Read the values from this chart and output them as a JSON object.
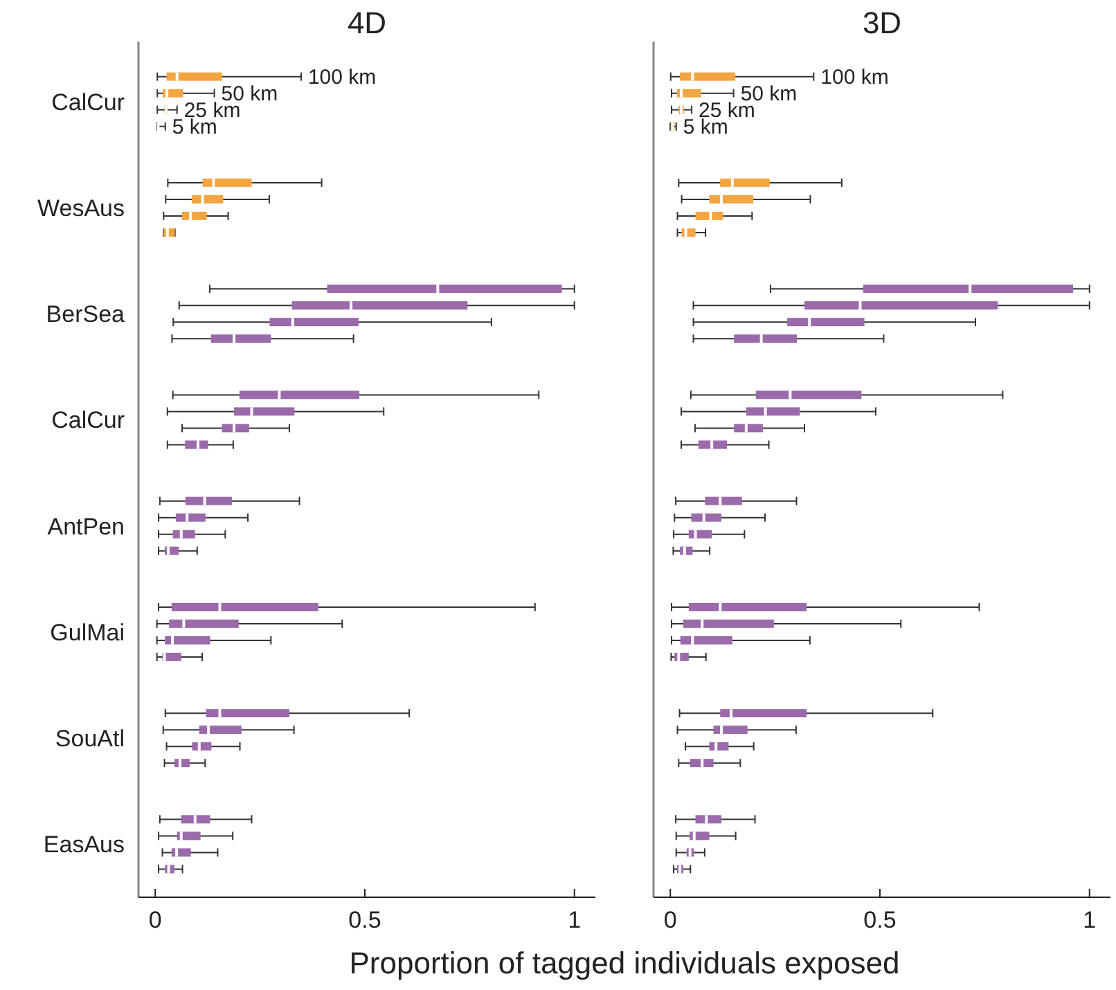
{
  "chart_data": [
    {
      "type": "box",
      "orientation": "horizontal",
      "title": "4D",
      "xlabel": "Proportion of tagged individuals exposed",
      "categories": [
        "CalCur",
        "WesAus",
        "BerSea",
        "CalCur",
        "AntPen",
        "GulMai",
        "SouAtl",
        "EasAus"
      ],
      "xlim": [
        -0.04,
        1.05
      ],
      "xticks": [
        0,
        0.5,
        1
      ],
      "series": [
        {
          "name": "100 km",
          "colors": [
            "#f2a541",
            "#f2a541",
            "#9b6aab",
            "#9b6aab",
            "#9b6aab",
            "#9b6aab",
            "#9b6aab",
            "#9b6aab"
          ],
          "boxes": [
            {
              "low": 0.005,
              "q1": 0.027,
              "median": 0.052,
              "q3": 0.159,
              "high": 0.348
            },
            {
              "low": 0.03,
              "q1": 0.113,
              "median": 0.139,
              "q3": 0.23,
              "high": 0.397
            },
            {
              "low": 0.13,
              "q1": 0.41,
              "median": 0.674,
              "q3": 0.97,
              "high": 1.0
            },
            {
              "low": 0.042,
              "q1": 0.201,
              "median": 0.296,
              "q3": 0.487,
              "high": 0.915
            },
            {
              "low": 0.011,
              "q1": 0.072,
              "median": 0.118,
              "q3": 0.183,
              "high": 0.344
            },
            {
              "low": 0.008,
              "q1": 0.039,
              "median": 0.154,
              "q3": 0.389,
              "high": 0.906
            },
            {
              "low": 0.024,
              "q1": 0.121,
              "median": 0.154,
              "q3": 0.32,
              "high": 0.606
            },
            {
              "low": 0.011,
              "q1": 0.062,
              "median": 0.095,
              "q3": 0.131,
              "high": 0.23
            }
          ]
        },
        {
          "name": "50 km",
          "colors": [
            "#f2a541",
            "#f2a541",
            "#9b6aab",
            "#9b6aab",
            "#9b6aab",
            "#9b6aab",
            "#9b6aab",
            "#9b6aab"
          ],
          "boxes": [
            {
              "low": 0.005,
              "q1": 0.018,
              "median": 0.028,
              "q3": 0.066,
              "high": 0.141
            },
            {
              "low": 0.025,
              "q1": 0.087,
              "median": 0.113,
              "q3": 0.162,
              "high": 0.272
            },
            {
              "low": 0.057,
              "q1": 0.326,
              "median": 0.467,
              "q3": 0.745,
              "high": 1.0
            },
            {
              "low": 0.029,
              "q1": 0.188,
              "median": 0.23,
              "q3": 0.332,
              "high": 0.545
            },
            {
              "low": 0.008,
              "q1": 0.049,
              "median": 0.076,
              "q3": 0.12,
              "high": 0.221
            },
            {
              "low": 0.004,
              "q1": 0.033,
              "median": 0.068,
              "q3": 0.199,
              "high": 0.446
            },
            {
              "low": 0.019,
              "q1": 0.105,
              "median": 0.127,
              "q3": 0.206,
              "high": 0.331
            },
            {
              "low": 0.008,
              "q1": 0.052,
              "median": 0.062,
              "q3": 0.108,
              "high": 0.185
            }
          ]
        },
        {
          "name": "25 km",
          "colors": [
            "#f2a541",
            "#f2a541",
            "#9b6aab",
            "#9b6aab",
            "#9b6aab",
            "#9b6aab",
            "#9b6aab",
            "#9b6aab"
          ],
          "boxes": [
            {
              "low": 0.005,
              "q1": 0.022,
              "median": 0.026,
              "q3": 0.03,
              "high": 0.052
            },
            {
              "low": 0.02,
              "q1": 0.064,
              "median": 0.084,
              "q3": 0.123,
              "high": 0.174
            },
            {
              "low": 0.043,
              "q1": 0.273,
              "median": 0.328,
              "q3": 0.485,
              "high": 0.802
            },
            {
              "low": 0.064,
              "q1": 0.159,
              "median": 0.188,
              "q3": 0.224,
              "high": 0.32
            },
            {
              "low": 0.008,
              "q1": 0.042,
              "median": 0.062,
              "q3": 0.095,
              "high": 0.167
            },
            {
              "low": 0.004,
              "q1": 0.023,
              "median": 0.041,
              "q3": 0.131,
              "high": 0.276
            },
            {
              "low": 0.027,
              "q1": 0.088,
              "median": 0.105,
              "q3": 0.134,
              "high": 0.202
            },
            {
              "low": 0.017,
              "q1": 0.039,
              "median": 0.051,
              "q3": 0.085,
              "high": 0.149
            }
          ]
        },
        {
          "name": "5 km",
          "colors": [
            "#f2a541",
            "#f2a541",
            "#9b6aab",
            "#9b6aab",
            "#9b6aab",
            "#9b6aab",
            "#9b6aab",
            "#9b6aab"
          ],
          "boxes": [
            {
              "low": 0.004,
              "q1": 0.005,
              "median": 0.007,
              "q3": 0.009,
              "high": 0.024
            },
            {
              "low": 0.02,
              "q1": 0.02,
              "median": 0.029,
              "q3": 0.047,
              "high": 0.047
            },
            {
              "low": 0.04,
              "q1": 0.133,
              "median": 0.188,
              "q3": 0.276,
              "high": 0.473
            },
            {
              "low": 0.029,
              "q1": 0.071,
              "median": 0.102,
              "q3": 0.126,
              "high": 0.186
            },
            {
              "low": 0.008,
              "q1": 0.023,
              "median": 0.031,
              "q3": 0.056,
              "high": 0.1
            },
            {
              "low": 0.004,
              "q1": 0.017,
              "median": 0.022,
              "q3": 0.062,
              "high": 0.112
            },
            {
              "low": 0.022,
              "q1": 0.046,
              "median": 0.059,
              "q3": 0.082,
              "high": 0.119
            },
            {
              "low": 0.008,
              "q1": 0.023,
              "median": 0.032,
              "q3": 0.046,
              "high": 0.065
            }
          ]
        }
      ]
    },
    {
      "type": "box",
      "orientation": "horizontal",
      "title": "3D",
      "categories": [
        null,
        null,
        null,
        null,
        null,
        null,
        null,
        null
      ],
      "xlim": [
        -0.04,
        1.05
      ],
      "xticks": [
        0,
        0.5,
        1
      ],
      "series": [
        {
          "name": "100 km",
          "colors": [
            "#f2a541",
            "#f2a541",
            "#9b6aab",
            "#9b6aab",
            "#9b6aab",
            "#9b6aab",
            "#9b6aab",
            "#9b6aab"
          ],
          "boxes": [
            {
              "low": 0.001,
              "q1": 0.023,
              "median": 0.053,
              "q3": 0.155,
              "high": 0.342
            },
            {
              "low": 0.02,
              "q1": 0.119,
              "median": 0.148,
              "q3": 0.237,
              "high": 0.409
            },
            {
              "low": 0.239,
              "q1": 0.46,
              "median": 0.715,
              "q3": 0.961,
              "high": 1.0
            },
            {
              "low": 0.049,
              "q1": 0.204,
              "median": 0.286,
              "q3": 0.456,
              "high": 0.793
            },
            {
              "low": 0.013,
              "q1": 0.083,
              "median": 0.119,
              "q3": 0.171,
              "high": 0.301
            },
            {
              "low": 0.003,
              "q1": 0.044,
              "median": 0.119,
              "q3": 0.325,
              "high": 0.737
            },
            {
              "low": 0.022,
              "q1": 0.119,
              "median": 0.145,
              "q3": 0.325,
              "high": 0.626
            },
            {
              "low": 0.013,
              "q1": 0.06,
              "median": 0.086,
              "q3": 0.122,
              "high": 0.202
            }
          ]
        },
        {
          "name": "50 km",
          "colors": [
            "#f2a541",
            "#f2a541",
            "#9b6aab",
            "#9b6aab",
            "#9b6aab",
            "#9b6aab",
            "#9b6aab",
            "#9b6aab"
          ],
          "boxes": [
            {
              "low": 0.003,
              "q1": 0.016,
              "median": 0.026,
              "q3": 0.073,
              "high": 0.151
            },
            {
              "low": 0.027,
              "q1": 0.093,
              "median": 0.122,
              "q3": 0.198,
              "high": 0.334
            },
            {
              "low": 0.055,
              "q1": 0.32,
              "median": 0.453,
              "q3": 0.781,
              "high": 1.0
            },
            {
              "low": 0.026,
              "q1": 0.181,
              "median": 0.227,
              "q3": 0.309,
              "high": 0.49
            },
            {
              "low": 0.01,
              "q1": 0.05,
              "median": 0.08,
              "q3": 0.122,
              "high": 0.226
            },
            {
              "low": 0.003,
              "q1": 0.031,
              "median": 0.076,
              "q3": 0.247,
              "high": 0.55
            },
            {
              "low": 0.017,
              "q1": 0.103,
              "median": 0.122,
              "q3": 0.184,
              "high": 0.3
            },
            {
              "low": 0.014,
              "q1": 0.046,
              "median": 0.057,
              "q3": 0.093,
              "high": 0.156
            }
          ]
        },
        {
          "name": "25 km",
          "colors": [
            "#f2a541",
            "#f2a541",
            "#9b6aab",
            "#9b6aab",
            "#9b6aab",
            "#9b6aab",
            "#9b6aab",
            "#9b6aab"
          ],
          "boxes": [
            {
              "low": 0.003,
              "q1": 0.02,
              "median": 0.026,
              "q3": 0.032,
              "high": 0.051
            },
            {
              "low": 0.017,
              "q1": 0.06,
              "median": 0.096,
              "q3": 0.126,
              "high": 0.195
            },
            {
              "low": 0.055,
              "q1": 0.279,
              "median": 0.332,
              "q3": 0.463,
              "high": 0.728
            },
            {
              "low": 0.059,
              "q1": 0.152,
              "median": 0.181,
              "q3": 0.221,
              "high": 0.32
            },
            {
              "low": 0.008,
              "q1": 0.044,
              "median": 0.06,
              "q3": 0.099,
              "high": 0.177
            },
            {
              "low": 0.003,
              "q1": 0.024,
              "median": 0.053,
              "q3": 0.148,
              "high": 0.333
            },
            {
              "low": 0.036,
              "q1": 0.093,
              "median": 0.109,
              "q3": 0.139,
              "high": 0.199
            },
            {
              "low": 0.014,
              "q1": 0.039,
              "median": 0.047,
              "q3": 0.056,
              "high": 0.082
            }
          ]
        },
        {
          "name": "5 km",
          "colors": [
            "#f2a541",
            "#f2a541",
            "#9b6aab",
            "#9b6aab",
            "#9b6aab",
            "#9b6aab",
            "#9b6aab",
            "#9b6aab"
          ],
          "boxes": [
            {
              "low": 0.0,
              "q1": 0.001,
              "median": 0.005,
              "q3": 0.01,
              "high": 0.014
            },
            {
              "low": 0.017,
              "q1": 0.027,
              "median": 0.037,
              "q3": 0.06,
              "high": 0.084
            },
            {
              "low": 0.055,
              "q1": 0.152,
              "median": 0.217,
              "q3": 0.302,
              "high": 0.509
            },
            {
              "low": 0.026,
              "q1": 0.067,
              "median": 0.099,
              "q3": 0.135,
              "high": 0.235
            },
            {
              "low": 0.007,
              "q1": 0.023,
              "median": 0.034,
              "q3": 0.053,
              "high": 0.094
            },
            {
              "low": 0.002,
              "q1": 0.01,
              "median": 0.02,
              "q3": 0.044,
              "high": 0.085
            },
            {
              "low": 0.02,
              "q1": 0.047,
              "median": 0.076,
              "q3": 0.103,
              "high": 0.167
            },
            {
              "low": 0.008,
              "q1": 0.016,
              "median": 0.023,
              "q3": 0.031,
              "high": 0.048
            }
          ]
        }
      ]
    }
  ]
}
